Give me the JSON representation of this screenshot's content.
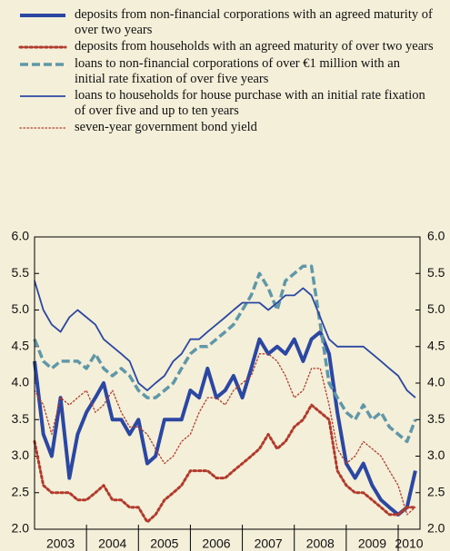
{
  "chart_data": {
    "type": "line",
    "categories": [
      "2003",
      "2004",
      "2005",
      "2006",
      "2007",
      "2008",
      "2009",
      "2010"
    ],
    "x": [
      2003.0,
      2003.17,
      2003.33,
      2003.5,
      2003.67,
      2003.83,
      2004.0,
      2004.17,
      2004.33,
      2004.5,
      2004.67,
      2004.83,
      2005.0,
      2005.17,
      2005.33,
      2005.5,
      2005.67,
      2005.83,
      2006.0,
      2006.17,
      2006.33,
      2006.5,
      2006.67,
      2006.83,
      2007.0,
      2007.17,
      2007.33,
      2007.5,
      2007.67,
      2007.83,
      2008.0,
      2008.17,
      2008.33,
      2008.5,
      2008.67,
      2008.83,
      2009.0,
      2009.17,
      2009.33,
      2009.5,
      2009.67,
      2009.83,
      2010.0,
      2010.17,
      2010.33
    ],
    "xlim": [
      2003.0,
      2010.42
    ],
    "ylim": [
      2.0,
      6.0
    ],
    "yticks": [
      {
        "value": 2,
        "label": "2.0"
      },
      2.5,
      {
        "value": 3,
        "label": "3.0"
      },
      3.5,
      {
        "value": 4,
        "label": "4.0"
      },
      4.5,
      {
        "value": 5,
        "label": "5.0"
      },
      5.5,
      {
        "value": 6,
        "label": "6.0"
      }
    ],
    "series": [
      {
        "name": "deposits from non-financial corporations with an agreed maturity of over two years",
        "color": "#2b47a3",
        "style": "solid",
        "width": 4,
        "values": [
          4.3,
          3.3,
          3.0,
          3.8,
          2.7,
          3.3,
          3.6,
          3.8,
          4.0,
          3.5,
          3.5,
          3.3,
          3.5,
          2.9,
          3.0,
          3.5,
          3.5,
          3.5,
          3.9,
          3.8,
          4.2,
          3.8,
          3.9,
          4.1,
          3.8,
          4.2,
          4.6,
          4.4,
          4.5,
          4.4,
          4.6,
          4.3,
          4.6,
          4.7,
          4.4,
          3.6,
          2.9,
          2.7,
          2.9,
          2.6,
          2.4,
          2.3,
          2.2,
          2.3,
          2.8
        ]
      },
      {
        "name": "deposits from households with an agreed maturity of over two years",
        "color": "#b23a2c",
        "style": "dotted",
        "width": 3,
        "values": [
          3.2,
          2.6,
          2.5,
          2.5,
          2.5,
          2.4,
          2.4,
          2.5,
          2.6,
          2.4,
          2.4,
          2.3,
          2.3,
          2.1,
          2.2,
          2.4,
          2.5,
          2.6,
          2.8,
          2.8,
          2.8,
          2.7,
          2.7,
          2.8,
          2.9,
          3.0,
          3.1,
          3.3,
          3.1,
          3.2,
          3.4,
          3.5,
          3.7,
          3.6,
          3.5,
          2.8,
          2.6,
          2.5,
          2.5,
          2.4,
          2.3,
          2.2,
          2.2,
          2.3,
          2.3
        ]
      },
      {
        "name": "loans to non-financial corporations of over €1 million with an initial rate fixation of over five years",
        "color": "#5f97a8",
        "style": "dashed",
        "width": 3.5,
        "values": [
          4.6,
          4.3,
          4.2,
          4.3,
          4.3,
          4.3,
          4.2,
          4.4,
          4.2,
          4.1,
          4.2,
          4.1,
          3.9,
          3.8,
          3.8,
          3.9,
          4.0,
          4.2,
          4.4,
          4.5,
          4.5,
          4.6,
          4.7,
          4.8,
          5.0,
          5.2,
          5.5,
          5.3,
          5.0,
          5.4,
          5.5,
          5.6,
          5.6,
          4.8,
          4.0,
          3.8,
          3.6,
          3.5,
          3.7,
          3.5,
          3.6,
          3.4,
          3.3,
          3.2,
          3.5
        ]
      },
      {
        "name": "loans to households for house purchase with an initial rate fixation of over five and up to ten years",
        "color": "#2b47a3",
        "style": "solid",
        "width": 1.8,
        "values": [
          5.4,
          5.0,
          4.8,
          4.7,
          4.9,
          5.0,
          4.9,
          4.8,
          4.6,
          4.5,
          4.4,
          4.3,
          4.0,
          3.9,
          4.0,
          4.1,
          4.3,
          4.4,
          4.6,
          4.6,
          4.7,
          4.8,
          4.9,
          5.0,
          5.1,
          5.1,
          5.1,
          5.0,
          5.1,
          5.2,
          5.2,
          5.3,
          5.2,
          4.9,
          4.6,
          4.5,
          4.5,
          4.5,
          4.5,
          4.4,
          4.3,
          4.2,
          4.1,
          3.9,
          3.8
        ]
      },
      {
        "name": "seven-year government bond yield",
        "color": "#b23a2c",
        "style": "dotted",
        "width": 1.3,
        "values": [
          3.9,
          3.7,
          3.3,
          3.8,
          3.7,
          3.8,
          3.9,
          3.6,
          3.7,
          3.9,
          3.6,
          3.4,
          3.4,
          3.3,
          3.1,
          2.9,
          3.0,
          3.2,
          3.3,
          3.6,
          3.8,
          3.8,
          3.7,
          3.9,
          4.0,
          4.1,
          4.4,
          4.4,
          4.3,
          4.1,
          3.8,
          3.9,
          4.2,
          4.2,
          3.7,
          3.1,
          2.9,
          3.0,
          3.2,
          3.1,
          3.0,
          2.8,
          2.6,
          2.2,
          2.3
        ]
      }
    ]
  }
}
